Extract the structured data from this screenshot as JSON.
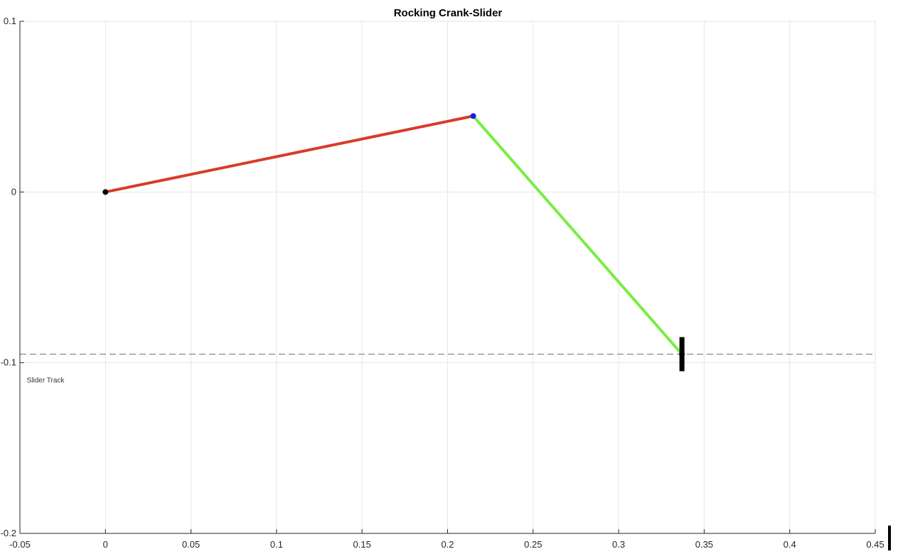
{
  "chart_data": {
    "type": "line",
    "title": "Rocking Crank-Slider",
    "xlabel": "",
    "ylabel": "",
    "xlim": [
      -0.05,
      0.45
    ],
    "ylim": [
      -0.2,
      0.1
    ],
    "x_ticks": [
      -0.05,
      0,
      0.05,
      0.1,
      0.15,
      0.2,
      0.25,
      0.3,
      0.35,
      0.4,
      0.45
    ],
    "x_tick_labels": [
      "-0.05",
      "0",
      "0.05",
      "0.1",
      "0.15",
      "0.2",
      "0.25",
      "0.3",
      "0.35",
      "0.4",
      "0.45"
    ],
    "y_ticks": [
      -0.2,
      -0.1,
      0,
      0.1
    ],
    "y_tick_labels": [
      "-0.2",
      "-0.1",
      "0",
      "0.1"
    ],
    "grid": true,
    "series": [
      {
        "points": [
          [
            0,
            0
          ],
          [
            0.215,
            0.0445
          ]
        ],
        "color": "#d93a2a"
      },
      {
        "points": [
          [
            0.215,
            0.0445
          ],
          [
            0.337,
            -0.095
          ]
        ],
        "color": "#77ee44"
      }
    ],
    "joints": [
      {
        "x": 0,
        "y": 0,
        "color": "#000000"
      },
      {
        "x": 0.215,
        "y": 0.0445,
        "color": "#1a1aee"
      },
      {
        "x": 0.337,
        "y": -0.095,
        "color": "#000000"
      }
    ],
    "slider_block": {
      "x": 0.337,
      "y_range": [
        -0.085,
        -0.105
      ],
      "color": "#000000"
    },
    "slider_track": {
      "y": -0.095,
      "x_range": [
        -0.05,
        0.45
      ],
      "style": "dashed",
      "color": "#888888"
    },
    "annotations": [
      {
        "text": "Slider Track",
        "x": -0.046,
        "y": -0.1115
      }
    ]
  }
}
